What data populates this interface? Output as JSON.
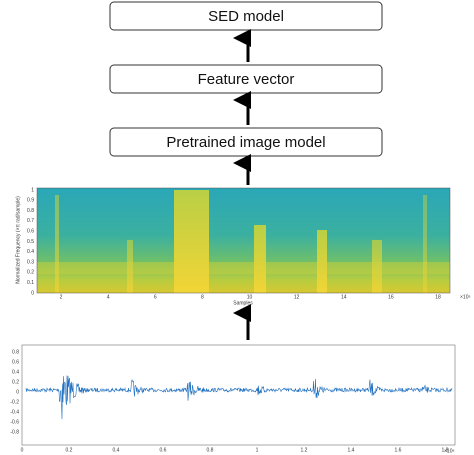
{
  "pipeline": {
    "boxes": [
      "SED model",
      "Feature vector",
      "Pretrained image model"
    ]
  },
  "spectrogram": {
    "y_label": "Normalized Frequency (×π rad/sample)",
    "x_label": "Samples",
    "x_exponent": "×10⁵",
    "x_ticks": [
      2,
      4,
      6,
      8,
      10,
      12,
      14,
      16,
      18
    ],
    "y_ticks": [
      0,
      0.1,
      0.2,
      0.3,
      0.4,
      0.5,
      0.6,
      0.7,
      0.8,
      0.9,
      1
    ]
  },
  "waveform": {
    "x_exponent": "×10⁶",
    "x_ticks": [
      0,
      0.2,
      0.4,
      0.6,
      0.8,
      1,
      1.2,
      1.4,
      1.6,
      1.8
    ],
    "y_ticks": [
      -0.8,
      -0.6,
      -0.4,
      -0.2,
      0,
      0.2,
      0.4,
      0.6,
      0.8
    ]
  }
}
